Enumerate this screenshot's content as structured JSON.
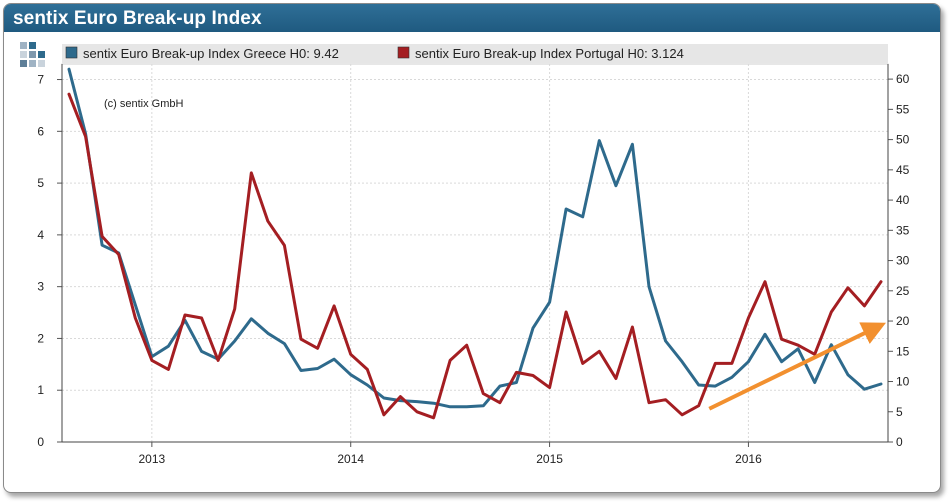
{
  "title": "sentix Euro Break-up Index",
  "logo_icon": "sentix-squares-logo",
  "copyright": "(c) sentix GmbH",
  "colors": {
    "header": "#245f85",
    "greece": "#2e6a8c",
    "portugal": "#a41e22",
    "arrow": "#f2902f"
  },
  "chart_data": {
    "type": "line",
    "x_ticks": [
      "2013",
      "2014",
      "2015",
      "2016"
    ],
    "y_left": {
      "ticks": [
        0,
        1,
        2,
        3,
        4,
        5,
        6,
        7
      ],
      "range": [
        0,
        7.3
      ]
    },
    "y_right": {
      "ticks": [
        0,
        5,
        10,
        15,
        20,
        25,
        30,
        35,
        40,
        45,
        50,
        55,
        60
      ],
      "range": [
        0,
        62.5
      ]
    },
    "x_range": [
      "2012-08",
      "2016-09"
    ],
    "grid": true,
    "legend_position": "top",
    "series": [
      {
        "name": "sentix Euro Break-up Index Greece H0: 9.42",
        "axis": "left",
        "color": "#2e6a8c",
        "x": [
          "2012-08",
          "2012-09",
          "2012-10",
          "2012-11",
          "2012-12",
          "2013-01",
          "2013-02",
          "2013-03",
          "2013-04",
          "2013-05",
          "2013-06",
          "2013-07",
          "2013-08",
          "2013-09",
          "2013-10",
          "2013-11",
          "2013-12",
          "2014-01",
          "2014-02",
          "2014-03",
          "2014-04",
          "2014-05",
          "2014-06",
          "2014-07",
          "2014-08",
          "2014-09",
          "2014-10",
          "2014-11",
          "2014-12",
          "2015-01",
          "2015-02",
          "2015-03",
          "2015-04",
          "2015-05",
          "2015-06",
          "2015-07",
          "2015-08",
          "2015-09",
          "2015-10",
          "2015-11",
          "2015-12",
          "2016-01",
          "2016-02",
          "2016-03",
          "2016-04",
          "2016-05",
          "2016-06",
          "2016-07",
          "2016-08",
          "2016-09"
        ],
        "values": [
          7.2,
          5.95,
          3.8,
          3.65,
          2.65,
          1.65,
          1.85,
          2.35,
          1.75,
          1.6,
          1.95,
          2.38,
          2.1,
          1.9,
          1.38,
          1.42,
          1.6,
          1.3,
          1.1,
          0.85,
          0.8,
          0.78,
          0.75,
          0.68,
          0.68,
          0.7,
          1.08,
          1.15,
          2.2,
          2.7,
          4.5,
          4.35,
          5.82,
          4.95,
          5.75,
          3.0,
          1.95,
          1.55,
          1.1,
          1.08,
          1.25,
          1.55,
          2.08,
          1.55,
          1.8,
          1.15,
          1.88,
          1.3,
          1.02,
          1.12
        ]
      },
      {
        "name": "sentix Euro Break-up Index Portugal H0: 3.124",
        "axis": "right",
        "color": "#a41e22",
        "x": [
          "2012-08",
          "2012-09",
          "2012-10",
          "2012-11",
          "2012-12",
          "2013-01",
          "2013-02",
          "2013-03",
          "2013-04",
          "2013-05",
          "2013-06",
          "2013-07",
          "2013-08",
          "2013-09",
          "2013-10",
          "2013-11",
          "2013-12",
          "2014-01",
          "2014-02",
          "2014-03",
          "2014-04",
          "2014-05",
          "2014-06",
          "2014-07",
          "2014-08",
          "2014-09",
          "2014-10",
          "2014-11",
          "2014-12",
          "2015-01",
          "2015-02",
          "2015-03",
          "2015-04",
          "2015-05",
          "2015-06",
          "2015-07",
          "2015-08",
          "2015-09",
          "2015-10",
          "2015-11",
          "2015-12",
          "2016-01",
          "2016-02",
          "2016-03",
          "2016-04",
          "2016-05",
          "2016-06",
          "2016-07",
          "2016-08",
          "2016-09"
        ],
        "values": [
          57.5,
          50.5,
          34,
          31,
          20.5,
          13.5,
          12,
          21,
          20.5,
          13.5,
          22,
          44.5,
          36.5,
          32.5,
          17,
          15.5,
          22.5,
          14.5,
          12,
          4.5,
          7.5,
          5,
          4,
          13.5,
          16,
          8,
          6.5,
          11.5,
          11,
          9,
          21.5,
          13,
          15,
          10.5,
          19,
          6.5,
          7,
          4.5,
          6,
          13,
          13,
          20.5,
          26.5,
          17,
          16,
          14.5,
          21.5,
          25.5,
          22.5,
          26.5
        ]
      }
    ],
    "annotations": [
      {
        "type": "trend-arrow",
        "from": [
          "2015-11",
          5.5
        ],
        "to": [
          "2016-09",
          19
        ],
        "axis": "right",
        "color": "#f2902f"
      }
    ]
  }
}
